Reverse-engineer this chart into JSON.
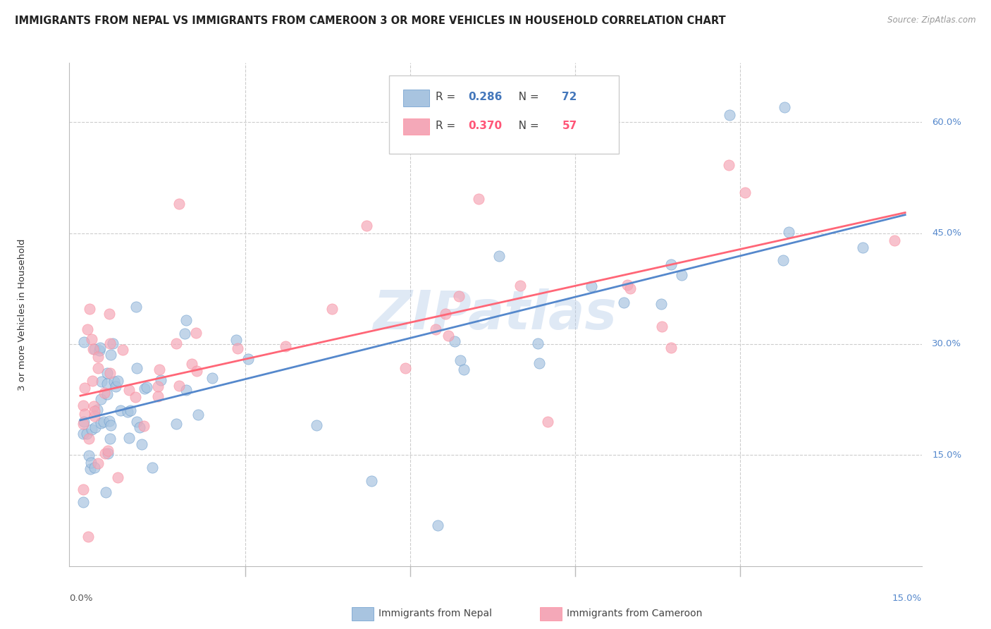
{
  "title": "IMMIGRANTS FROM NEPAL VS IMMIGRANTS FROM CAMEROON 3 OR MORE VEHICLES IN HOUSEHOLD CORRELATION CHART",
  "source_text": "Source: ZipAtlas.com",
  "ylabel": "3 or more Vehicles in Household",
  "xlabel_nepal": "Immigrants from Nepal",
  "xlabel_cameroon": "Immigrants from Cameroon",
  "watermark": "ZIPatlas",
  "xlim": [
    -0.002,
    0.153
  ],
  "ylim": [
    0.0,
    0.68
  ],
  "xtick_positions": [
    0.0,
    0.15
  ],
  "xtick_labels_outer": [
    "0.0%",
    "15.0%"
  ],
  "ytick_positions": [
    0.15,
    0.3,
    0.45,
    0.6
  ],
  "ytick_labels": [
    "15.0%",
    "30.0%",
    "45.0%",
    "60.0%"
  ],
  "nepal_color": "#A8C4E0",
  "cameroon_color": "#F4A8B8",
  "nepal_edge_color": "#6699CC",
  "cameroon_edge_color": "#FF8899",
  "nepal_line_color": "#5588CC",
  "cameroon_line_color": "#FF6677",
  "nepal_R": 0.286,
  "nepal_N": 72,
  "cameroon_R": 0.37,
  "cameroon_N": 57,
  "background_color": "#FFFFFF",
  "grid_color": "#CCCCCC",
  "title_fontsize": 10.5,
  "source_fontsize": 8.5,
  "label_fontsize": 9.5,
  "tick_fontsize": 9.5,
  "legend_fontsize": 11,
  "watermark_color": "#B0C8E8",
  "watermark_alpha": 0.4,
  "watermark_fontsize": 55,
  "nepal_legend_color": "#4477BB",
  "cameroon_legend_color": "#FF5577"
}
